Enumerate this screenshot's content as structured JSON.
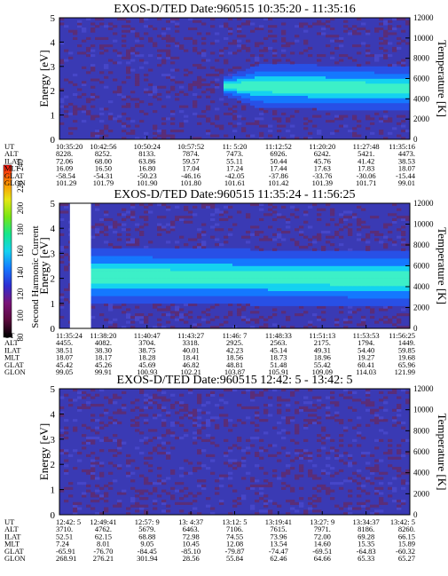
{
  "chart_data": [
    {
      "type": "heatmap",
      "title": "EXOS-D/TED   Date:960515  10:35:20 - 11:35:16",
      "ylabel": "Energy [eV]",
      "y2label": "Temperature [K]",
      "ylim": [
        0,
        5
      ],
      "yticks": [
        "0",
        "1",
        "2",
        "3",
        "4",
        "5"
      ],
      "y2lim": [
        0,
        12000
      ],
      "y2ticks": [
        "0",
        "2000",
        "4000",
        "6000",
        "8000",
        "10000",
        "12000"
      ],
      "orbit_rows": [
        "UT",
        "ALT",
        "ILAT",
        "MLT",
        "GLAT",
        "GLON"
      ],
      "orbit_values": [
        [
          "10:35:20",
          "10:42:56",
          "10:50:24",
          "10:57:52",
          "11: 5:20",
          "11:12:52",
          "11:20:20",
          "11:27:48",
          "11:35:16"
        ],
        [
          "8228.",
          "8252.",
          "8133.",
          "7874.",
          "7473.",
          "6926.",
          "6242.",
          "5421.",
          "4473."
        ],
        [
          "72.06",
          "68.00",
          "63.86",
          "59.57",
          "55.11",
          "50.44",
          "45.76",
          "41.42",
          "38.53"
        ],
        [
          "16.09",
          "16.50",
          "16.80",
          "17.04",
          "17.24",
          "17.44",
          "17.63",
          "17.83",
          "18.07"
        ],
        [
          "-58.54",
          "-54.31",
          "-50.23",
          "-46.16",
          "-42.05",
          "-37.86",
          "-33.76",
          "-30.06",
          "-15.44"
        ],
        [
          "101.29",
          "101.79",
          "101.90",
          "101.80",
          "101.61",
          "101.42",
          "101.39",
          "101.71",
          "99.01"
        ]
      ],
      "hot_band": {
        "start_fraction": 0.47,
        "energy_center_start": 2.2,
        "energy_center_end": 2.1,
        "half_width": 0.9
      }
    },
    {
      "type": "heatmap",
      "title": "EXOS-D/TED   Date:960515  11:35:24 - 11:56:25",
      "ylabel": "Energy [eV]",
      "y2label": "Temperature [K]",
      "ylim": [
        0,
        5
      ],
      "yticks": [
        "0",
        "1",
        "2",
        "3",
        "4",
        "5"
      ],
      "y2lim": [
        0,
        12000
      ],
      "y2ticks": [
        "0",
        "2000",
        "4000",
        "6000",
        "8000",
        "10000",
        "12000"
      ],
      "orbit_rows": [
        "UT",
        "ALT",
        "ILAT",
        "MLT",
        "GLAT",
        "GLON"
      ],
      "orbit_values": [
        [
          "11:35:24",
          "11:38:20",
          "11:40:47",
          "11:43:27",
          "11:46: 7",
          "11:48:33",
          "11:51:13",
          "11:53:53",
          "11:56:25"
        ],
        [
          "4455.",
          "4082.",
          "3704.",
          "3318.",
          "2925.",
          "2563.",
          "2175.",
          "1794.",
          "1449."
        ],
        [
          "38.51",
          "38.30",
          "38.75",
          "40.01",
          "42.23",
          "45.14",
          "49.31",
          "54.40",
          "59.85"
        ],
        [
          "18.07",
          "18.17",
          "18.28",
          "18.41",
          "18.56",
          "18.73",
          "18.96",
          "19.27",
          "19.68"
        ],
        [
          "45.42",
          "45.26",
          "45.69",
          "46.82",
          "48.81",
          "51.48",
          "55.42",
          "60.41",
          "65.96"
        ],
        [
          "99.05",
          "99.91",
          "100.93",
          "102.21",
          "103.87",
          "105.91",
          "109.09",
          "114.03",
          "121.99"
        ]
      ],
      "gap_fraction": [
        0.03,
        0.09
      ],
      "hot_band": {
        "start_fraction": 0.09,
        "energy_center_start": 2.1,
        "energy_center_end": 2.0,
        "half_width": 1.1
      }
    },
    {
      "type": "heatmap",
      "title": "EXOS-D/TED   Date:960515  12:42: 5 - 13:42: 5",
      "ylabel": "Energy [eV]",
      "y2label": "Temperature [K]",
      "ylim": [
        0,
        5
      ],
      "yticks": [
        "0",
        "1",
        "2",
        "3",
        "4",
        "5"
      ],
      "y2lim": [
        0,
        12000
      ],
      "y2ticks": [
        "0",
        "2000",
        "4000",
        "6000",
        "8000",
        "10000",
        "12000"
      ],
      "orbit_rows": [
        "UT",
        "ALT",
        "ILAT",
        "MLT",
        "GLAT",
        "GLON"
      ],
      "orbit_values": [
        [
          "12:42: 5",
          "12:49:41",
          "12:57: 9",
          "13: 4:37",
          "13:12: 5",
          "13:19:41",
          "13:27: 9",
          "13:34:37",
          "13:42: 5"
        ],
        [
          "3710.",
          "4762.",
          "5679.",
          "6463.",
          "7106.",
          "7615.",
          "7971.",
          "8186.",
          "8260."
        ],
        [
          "52.51",
          "62.15",
          "68.88",
          "72.98",
          "74.55",
          "73.96",
          "72.00",
          "69.28",
          "66.15"
        ],
        [
          "7.24",
          "8.01",
          "9.05",
          "10.45",
          "12.08",
          "13.54",
          "14.60",
          "15.35",
          "15.89"
        ],
        [
          "-65.91",
          "-76.70",
          "-84.45",
          "-85.10",
          "-79.87",
          "-74.47",
          "-69.51",
          "-64.83",
          "-60.32"
        ],
        [
          "268.91",
          "276.21",
          "301.94",
          "28.56",
          "55.84",
          "62.46",
          "64.66",
          "65.33",
          "65.27"
        ]
      ],
      "hot_band": null
    }
  ],
  "colorbar": {
    "label": "Second Harmonic Current",
    "ticks": [
      "80",
      "100",
      "120",
      "140",
      "160",
      "180",
      "200",
      "220",
      "240"
    ],
    "colors": [
      "#000000",
      "#5a0a3c",
      "#7a1478",
      "#2d2dd2",
      "#1478ff",
      "#14d2f0",
      "#14e68c",
      "#78e614",
      "#e6e614",
      "#ff8c00",
      "#ff1414"
    ]
  },
  "colors": {
    "background": "#3a3ab4",
    "noise": "#5a2d78",
    "gap": "#ffffff"
  }
}
